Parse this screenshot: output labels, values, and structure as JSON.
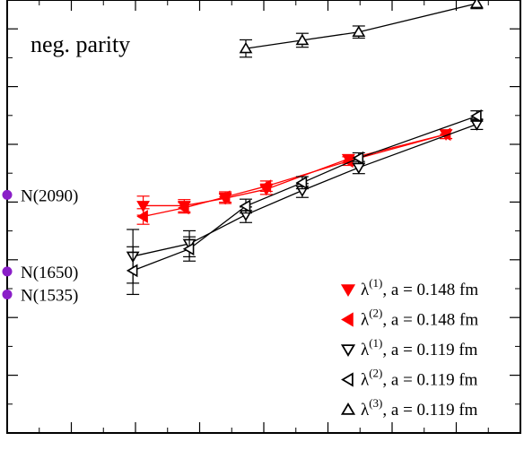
{
  "chart_data": {
    "type": "scatter",
    "title": "neg. parity",
    "xlabel": "",
    "ylabel": "",
    "xlim": [
      0,
      1
    ],
    "ylim": [
      0,
      1
    ],
    "grid": false,
    "legend_position": "bottom-right",
    "resonances": [
      {
        "label": "N(2090)",
        "y": 0.55,
        "color": "#8a1ec8"
      },
      {
        "label": "N(1650)",
        "y": 0.373,
        "color": "#8a1ec8"
      },
      {
        "label": "N(1535)",
        "y": 0.32,
        "color": "#8a1ec8"
      }
    ],
    "series": [
      {
        "name_main": "λ",
        "name_sup": "(1)",
        "name_rest": ", a = 0.148 fm",
        "marker": "tri-down",
        "filled": true,
        "color": "#ff0000",
        "points": [
          {
            "x": 0.265,
            "y": 0.525,
            "err": 0.022
          },
          {
            "x": 0.345,
            "y": 0.525,
            "err": 0.014
          },
          {
            "x": 0.425,
            "y": 0.542,
            "err": 0.012
          },
          {
            "x": 0.505,
            "y": 0.563,
            "err": 0.012
          },
          {
            "x": 0.665,
            "y": 0.633,
            "err": 0.01
          },
          {
            "x": 0.855,
            "y": 0.69,
            "err": 0.01
          }
        ]
      },
      {
        "name_main": "λ",
        "name_sup": "(2)",
        "name_rest": ", a = 0.148 fm",
        "marker": "tri-left",
        "filled": true,
        "color": "#ff0000",
        "points": [
          {
            "x": 0.265,
            "y": 0.5,
            "err": 0.018
          },
          {
            "x": 0.345,
            "y": 0.52,
            "err": 0.012
          },
          {
            "x": 0.425,
            "y": 0.545,
            "err": 0.012
          },
          {
            "x": 0.505,
            "y": 0.57,
            "err": 0.012
          },
          {
            "x": 0.665,
            "y": 0.628,
            "err": 0.01
          },
          {
            "x": 0.855,
            "y": 0.69,
            "err": 0.01
          }
        ]
      },
      {
        "name_main": "λ",
        "name_sup": "(1)",
        "name_rest": ", a = 0.119 fm",
        "marker": "tri-down",
        "filled": false,
        "color": "#000000",
        "points": [
          {
            "x": 0.245,
            "y": 0.408,
            "err": 0.062
          },
          {
            "x": 0.355,
            "y": 0.437,
            "err": 0.03
          },
          {
            "x": 0.465,
            "y": 0.504,
            "err": 0.018
          },
          {
            "x": 0.575,
            "y": 0.56,
            "err": 0.016
          },
          {
            "x": 0.685,
            "y": 0.613,
            "err": 0.014
          },
          {
            "x": 0.915,
            "y": 0.713,
            "err": 0.012
          }
        ]
      },
      {
        "name_main": "λ",
        "name_sup": "(2)",
        "name_rest": ", a = 0.119 fm",
        "marker": "tri-left",
        "filled": false,
        "color": "#000000",
        "points": [
          {
            "x": 0.245,
            "y": 0.375,
            "err": 0.055
          },
          {
            "x": 0.355,
            "y": 0.425,
            "err": 0.028
          },
          {
            "x": 0.465,
            "y": 0.524,
            "err": 0.016
          },
          {
            "x": 0.575,
            "y": 0.578,
            "err": 0.014
          },
          {
            "x": 0.685,
            "y": 0.635,
            "err": 0.012
          },
          {
            "x": 0.915,
            "y": 0.732,
            "err": 0.012
          }
        ]
      },
      {
        "name_main": "λ",
        "name_sup": "(3)",
        "name_rest": ", a = 0.119 fm",
        "marker": "tri-up",
        "filled": false,
        "color": "#000000",
        "points": [
          {
            "x": 0.465,
            "y": 0.888,
            "err": 0.02
          },
          {
            "x": 0.575,
            "y": 0.907,
            "err": 0.016
          },
          {
            "x": 0.685,
            "y": 0.926,
            "err": 0.014
          },
          {
            "x": 0.915,
            "y": 0.992,
            "err": 0.012
          }
        ]
      }
    ]
  }
}
